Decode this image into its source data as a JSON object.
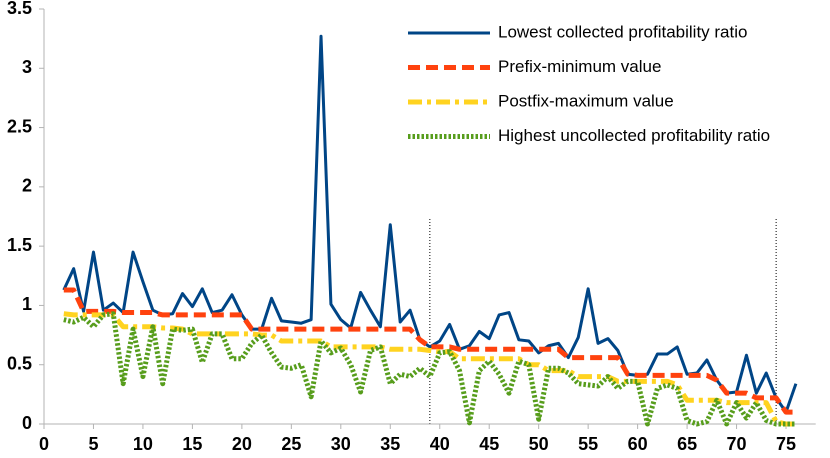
{
  "chart_data": {
    "type": "line",
    "x": [
      2,
      3,
      4,
      5,
      6,
      7,
      8,
      9,
      10,
      11,
      12,
      13,
      14,
      15,
      16,
      17,
      18,
      19,
      20,
      21,
      22,
      23,
      24,
      25,
      26,
      27,
      28,
      29,
      30,
      31,
      32,
      33,
      34,
      35,
      36,
      37,
      38,
      39,
      40,
      41,
      42,
      43,
      44,
      45,
      46,
      47,
      48,
      49,
      50,
      51,
      52,
      53,
      54,
      55,
      56,
      57,
      58,
      59,
      60,
      61,
      62,
      63,
      64,
      65,
      66,
      67,
      68,
      69,
      70,
      71,
      72,
      73,
      74,
      75,
      76
    ],
    "series": [
      {
        "name": "Lowest collected profitability ratio",
        "color": "#004586",
        "style": "solid",
        "values": [
          1.13,
          1.31,
          0.95,
          1.45,
          0.96,
          1.02,
          0.94,
          1.45,
          1.2,
          0.96,
          0.92,
          0.93,
          1.1,
          0.99,
          1.14,
          0.94,
          0.96,
          1.09,
          0.92,
          0.8,
          0.8,
          1.06,
          0.87,
          0.86,
          0.85,
          0.88,
          3.27,
          1.01,
          0.88,
          0.81,
          1.11,
          0.96,
          0.82,
          1.68,
          0.86,
          0.96,
          0.71,
          0.65,
          0.7,
          0.84,
          0.63,
          0.66,
          0.78,
          0.72,
          0.92,
          0.94,
          0.71,
          0.7,
          0.6,
          0.66,
          0.68,
          0.56,
          0.73,
          1.14,
          0.68,
          0.72,
          0.62,
          0.42,
          0.41,
          0.42,
          0.59,
          0.59,
          0.65,
          0.42,
          0.43,
          0.54,
          0.37,
          0.26,
          0.27,
          0.58,
          0.26,
          0.43,
          0.22,
          0.1,
          0.34
        ]
      },
      {
        "name": "Prefix-minimum value",
        "color": "#ff420e",
        "style": "dashed",
        "values": [
          1.13,
          1.13,
          0.95,
          0.95,
          0.95,
          0.95,
          0.94,
          0.94,
          0.94,
          0.94,
          0.92,
          0.92,
          0.92,
          0.92,
          0.92,
          0.92,
          0.92,
          0.92,
          0.92,
          0.8,
          0.8,
          0.8,
          0.8,
          0.8,
          0.8,
          0.8,
          0.8,
          0.8,
          0.8,
          0.8,
          0.8,
          0.8,
          0.8,
          0.8,
          0.8,
          0.8,
          0.71,
          0.65,
          0.65,
          0.65,
          0.63,
          0.63,
          0.63,
          0.63,
          0.63,
          0.63,
          0.63,
          0.63,
          0.63,
          0.63,
          0.63,
          0.56,
          0.56,
          0.56,
          0.56,
          0.56,
          0.56,
          0.42,
          0.41,
          0.41,
          0.41,
          0.41,
          0.41,
          0.41,
          0.41,
          0.41,
          0.37,
          0.26,
          0.26,
          0.26,
          0.22,
          0.22,
          0.22,
          0.1,
          0.1
        ]
      },
      {
        "name": "Postfix-maximum value",
        "color": "#ffd320",
        "style": "dashdot",
        "values": [
          0.93,
          0.92,
          0.92,
          0.92,
          0.92,
          0.92,
          0.82,
          0.82,
          0.82,
          0.82,
          0.81,
          0.81,
          0.8,
          0.76,
          0.76,
          0.76,
          0.76,
          0.76,
          0.76,
          0.76,
          0.75,
          0.75,
          0.7,
          0.7,
          0.7,
          0.7,
          0.7,
          0.65,
          0.65,
          0.65,
          0.65,
          0.65,
          0.65,
          0.63,
          0.63,
          0.63,
          0.63,
          0.62,
          0.61,
          0.61,
          0.55,
          0.55,
          0.55,
          0.55,
          0.55,
          0.55,
          0.55,
          0.5,
          0.5,
          0.45,
          0.45,
          0.45,
          0.4,
          0.4,
          0.4,
          0.4,
          0.36,
          0.36,
          0.36,
          0.36,
          0.36,
          0.36,
          0.33,
          0.2,
          0.2,
          0.2,
          0.2,
          0.18,
          0.18,
          0.18,
          0.18,
          0.18,
          0.02,
          0,
          0
        ]
      },
      {
        "name": "Highest uncollected profitability ratio",
        "color": "#579d1c",
        "style": "dotted",
        "values": [
          0.88,
          0.86,
          0.9,
          0.82,
          0.92,
          0.93,
          0.34,
          0.8,
          0.4,
          0.82,
          0.34,
          0.8,
          0.79,
          0.8,
          0.52,
          0.76,
          0.76,
          0.55,
          0.55,
          0.68,
          0.75,
          0.6,
          0.48,
          0.47,
          0.5,
          0.23,
          0.7,
          0.6,
          0.64,
          0.5,
          0.27,
          0.62,
          0.65,
          0.34,
          0.42,
          0.4,
          0.47,
          0.4,
          0.6,
          0.61,
          0.45,
          0.01,
          0.45,
          0.53,
          0.42,
          0.26,
          0.53,
          0.5,
          0.04,
          0.47,
          0.47,
          0.43,
          0.34,
          0.33,
          0.32,
          0.4,
          0.3,
          0.36,
          0.36,
          0,
          0.3,
          0.33,
          0.3,
          0.03,
          0,
          0.02,
          0.2,
          0,
          0.18,
          0.05,
          0.18,
          0.03,
          0,
          0,
          0
        ]
      }
    ],
    "vlines": [
      39,
      74
    ],
    "xlim": [
      0,
      78
    ],
    "xticks": [
      0,
      5,
      10,
      15,
      20,
      25,
      30,
      35,
      40,
      45,
      50,
      55,
      60,
      65,
      70,
      75
    ],
    "ylim": [
      0,
      3.5
    ],
    "yticks": [
      0,
      0.5,
      1,
      1.5,
      2,
      2.5,
      3,
      3.5
    ],
    "legend": "top-right"
  }
}
